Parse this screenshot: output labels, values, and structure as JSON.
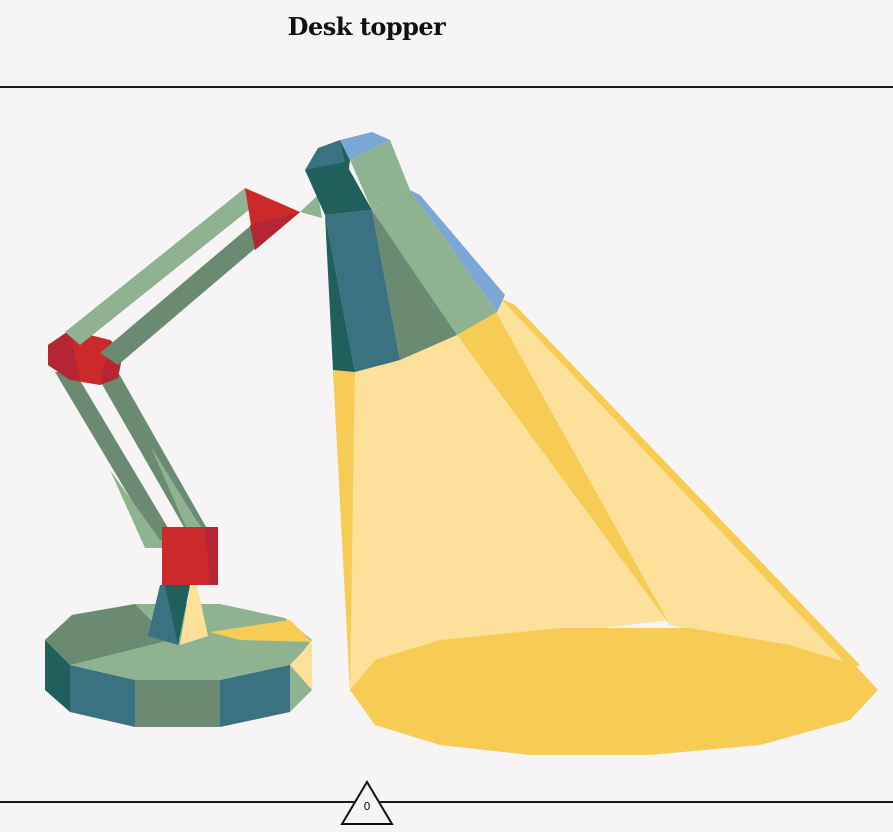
{
  "header": {
    "title": "Desk topper"
  },
  "illustration": {
    "subject": "desk-lamp",
    "palette": {
      "red": "#cc2a2a",
      "sage": "#8fb391",
      "dark_sage": "#6b8a72",
      "teal": "#3b7282",
      "dark_teal": "#1f5f5c",
      "blue": "#7aa7d6",
      "light_yellow": "#fde19b",
      "yellow": "#f7cc55"
    }
  },
  "footer": {
    "counter_value": "0"
  }
}
